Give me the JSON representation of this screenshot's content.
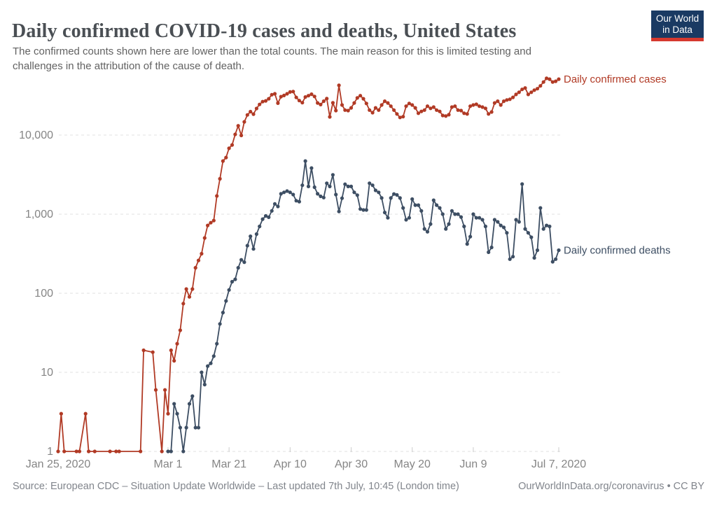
{
  "header": {
    "title": "Daily confirmed COVID-19 cases and deaths, United States",
    "subtitle": "The confirmed counts shown here are lower than the total counts. The main reason for this is limited testing and challenges in the attribution of the cause of death.",
    "logo": {
      "line1": "Our World",
      "line2": "in Data",
      "bg_color": "#1a3a63",
      "bar_color": "#d6392f"
    }
  },
  "footer": {
    "source": "Source: European CDC – Situation Update Worldwide – Last updated 7th July, 10:45 (London time)",
    "attribution": "OurWorldInData.org/coronavirus • CC BY"
  },
  "chart_data": {
    "type": "line",
    "title": "Daily confirmed COVID-19 cases and deaths, United States",
    "yscale": "log",
    "grid": "dashed-horizontal",
    "legend_position": "right-of-line-end",
    "x_start_date": "Jan 25, 2020",
    "x_end_date": "Jul 7, 2020",
    "x_unit": "day-index from Jan 25, 2020",
    "ylim": [
      1,
      60000
    ],
    "y_ticks": [
      {
        "value": 1,
        "label": "1"
      },
      {
        "value": 10,
        "label": "10"
      },
      {
        "value": 100,
        "label": "100"
      },
      {
        "value": 1000,
        "label": "1,000"
      },
      {
        "value": 10000,
        "label": "10,000"
      }
    ],
    "x_ticks": [
      {
        "day": 0,
        "label": "Jan 25, 2020"
      },
      {
        "day": 36,
        "label": "Mar 1"
      },
      {
        "day": 56,
        "label": "Mar 21"
      },
      {
        "day": 76,
        "label": "Apr 10"
      },
      {
        "day": 96,
        "label": "Apr 30"
      },
      {
        "day": 116,
        "label": "May 20"
      },
      {
        "day": 136,
        "label": "Jun 9"
      },
      {
        "day": 164,
        "label": "Jul 7, 2020"
      }
    ],
    "series": [
      {
        "name": "Daily confirmed cases",
        "color": "#b13a25",
        "note": "0 = no cases reported that day (point omitted on log scale)",
        "values": [
          1,
          3,
          1,
          0,
          0,
          0,
          1,
          1,
          0,
          3,
          1,
          0,
          1,
          0,
          0,
          0,
          0,
          1,
          0,
          1,
          1,
          0,
          0,
          0,
          0,
          0,
          0,
          1,
          19,
          0,
          0,
          18,
          6,
          0,
          1,
          6,
          3,
          19,
          14,
          23,
          34,
          74,
          113,
          90,
          113,
          210,
          260,
          316,
          500,
          720,
          780,
          830,
          1700,
          2800,
          4700,
          5200,
          6800,
          7500,
          10200,
          13100,
          9900,
          14700,
          18000,
          19800,
          18400,
          21700,
          24400,
          26500,
          27100,
          28800,
          32400,
          33300,
          25300,
          30600,
          31700,
          33300,
          35100,
          35500,
          29900,
          27300,
          25700,
          30300,
          31500,
          32900,
          30800,
          25500,
          24300,
          26800,
          28900,
          17000,
          25600,
          20400,
          42600,
          24000,
          20700,
          20400,
          22100,
          25500,
          29500,
          31500,
          28800,
          25100,
          20700,
          19200,
          22100,
          20700,
          24000,
          26800,
          25500,
          23200,
          20700,
          18500,
          16700,
          17100,
          23200,
          25100,
          24000,
          22100,
          18900,
          19900,
          20700,
          23200,
          21800,
          22600,
          20700,
          19900,
          17700,
          17400,
          18100,
          22600,
          23200,
          20700,
          20400,
          18900,
          18500,
          23200,
          24000,
          24500,
          23200,
          22600,
          21800,
          18500,
          19600,
          25500,
          26800,
          24000,
          26800,
          27800,
          28400,
          30000,
          32700,
          34800,
          37800,
          39400,
          32700,
          34800,
          37000,
          38600,
          41900,
          46900,
          52200,
          50900,
          46900,
          47900,
          50900
        ]
      },
      {
        "name": "Daily confirmed deaths",
        "color": "#3d4e63",
        "note": "null = no deaths reported yet",
        "values": [
          null,
          null,
          null,
          null,
          null,
          null,
          null,
          null,
          null,
          null,
          null,
          null,
          null,
          null,
          null,
          null,
          null,
          null,
          null,
          null,
          null,
          null,
          null,
          null,
          null,
          null,
          null,
          null,
          null,
          null,
          null,
          null,
          null,
          null,
          null,
          null,
          1,
          1,
          4,
          3,
          2,
          1,
          2,
          4,
          5,
          2,
          2,
          10,
          7,
          12,
          13,
          16,
          23,
          41,
          57,
          80,
          110,
          140,
          150,
          210,
          265,
          247,
          400,
          525,
          363,
          560,
          700,
          865,
          950,
          915,
          1100,
          1350,
          1250,
          1810,
          1890,
          1960,
          1890,
          1770,
          1480,
          1440,
          2320,
          4700,
          2240,
          3830,
          2190,
          1810,
          1680,
          1620,
          2460,
          2240,
          3140,
          1770,
          1080,
          1590,
          2390,
          2240,
          2240,
          1890,
          1740,
          1160,
          1130,
          1130,
          2460,
          2320,
          2000,
          1890,
          1600,
          1050,
          900,
          1600,
          1800,
          1750,
          1600,
          1200,
          850,
          900,
          1550,
          1300,
          1300,
          1100,
          650,
          600,
          750,
          1500,
          1300,
          1200,
          1000,
          650,
          750,
          1100,
          1000,
          1000,
          920,
          700,
          420,
          520,
          1000,
          900,
          900,
          850,
          700,
          330,
          380,
          850,
          800,
          720,
          680,
          580,
          270,
          290,
          850,
          800,
          2400,
          650,
          580,
          510,
          280,
          350,
          1200,
          650,
          720,
          700,
          250,
          270,
          350
        ]
      }
    ]
  }
}
